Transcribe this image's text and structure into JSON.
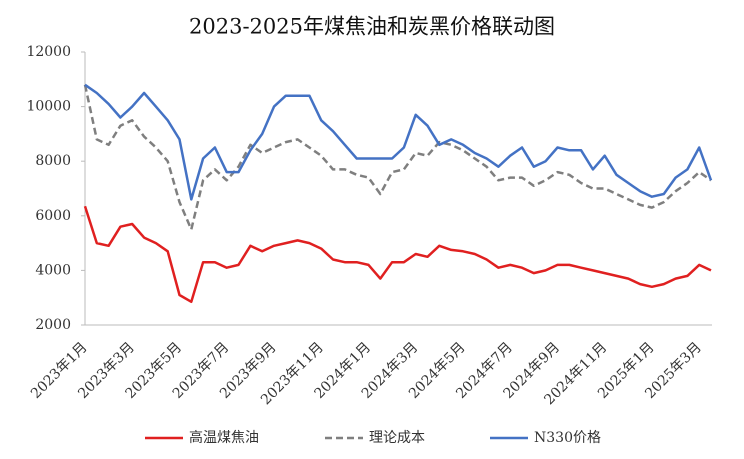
{
  "chart_data": {
    "type": "line",
    "title": "2023-2025年煤焦油和炭黑价格联动图",
    "categories": [
      "2023年1月",
      null,
      null,
      null,
      "2023年3月",
      null,
      null,
      null,
      "2023年5月",
      null,
      null,
      null,
      "2023年7月",
      null,
      null,
      null,
      "2023年9月",
      null,
      null,
      null,
      "2023年11月",
      null,
      null,
      null,
      "2024年1月",
      null,
      null,
      null,
      "2024年3月",
      null,
      null,
      null,
      "2024年5月",
      null,
      null,
      null,
      "2024年7月",
      null,
      null,
      null,
      "2024年9月",
      null,
      null,
      null,
      "2024年11月",
      null,
      null,
      null,
      "2025年1月",
      null,
      null,
      null,
      "2025年3月",
      null
    ],
    "series": [
      {
        "name": "高温煤焦油",
        "color": "#e02020",
        "dash": false,
        "values": [
          6350,
          5000,
          4900,
          5600,
          5700,
          5200,
          5000,
          4700,
          3100,
          2850,
          4300,
          4300,
          4100,
          4200,
          4900,
          4700,
          4900,
          5000,
          5100,
          5000,
          4800,
          4400,
          4300,
          4300,
          4200,
          3700,
          4300,
          4300,
          4600,
          4500,
          4900,
          4750,
          4700,
          4600,
          4400,
          4100,
          4200,
          4100,
          3900,
          4000,
          4200,
          4200,
          4100,
          4000,
          3900,
          3800,
          3700,
          3500,
          3400,
          3500,
          3700,
          3800,
          4200,
          4000
        ]
      },
      {
        "name": "理论成本",
        "color": "#7f7f7f",
        "dash": true,
        "values": [
          10800,
          8800,
          8600,
          9300,
          9500,
          8900,
          8500,
          8000,
          6500,
          5500,
          7300,
          7700,
          7300,
          7800,
          8600,
          8300,
          8500,
          8700,
          8800,
          8500,
          8200,
          7700,
          7700,
          7500,
          7400,
          6800,
          7600,
          7700,
          8300,
          8200,
          8700,
          8600,
          8400,
          8100,
          7800,
          7300,
          7400,
          7400,
          7100,
          7300,
          7600,
          7500,
          7200,
          7000,
          7000,
          6800,
          6600,
          6400,
          6300,
          6500,
          6900,
          7200,
          7600,
          7300
        ]
      },
      {
        "name": "N330价格",
        "color": "#4472c4",
        "dash": false,
        "values": [
          10800,
          10500,
          10100,
          9600,
          10000,
          10500,
          10000,
          9500,
          8800,
          6600,
          8100,
          8500,
          7600,
          7600,
          8400,
          9000,
          10000,
          10400,
          10400,
          10400,
          9500,
          9100,
          8600,
          8100,
          8100,
          8100,
          8100,
          8500,
          9700,
          9300,
          8600,
          8800,
          8600,
          8300,
          8100,
          7800,
          8200,
          8500,
          7800,
          8000,
          8500,
          8400,
          8400,
          7700,
          8200,
          7500,
          7200,
          6900,
          6700,
          6800,
          7400,
          7700,
          8500,
          7300
        ]
      }
    ],
    "ylim": [
      2000,
      12000
    ],
    "yticks": [
      2000,
      4000,
      6000,
      8000,
      10000,
      12000
    ],
    "grid": false
  }
}
